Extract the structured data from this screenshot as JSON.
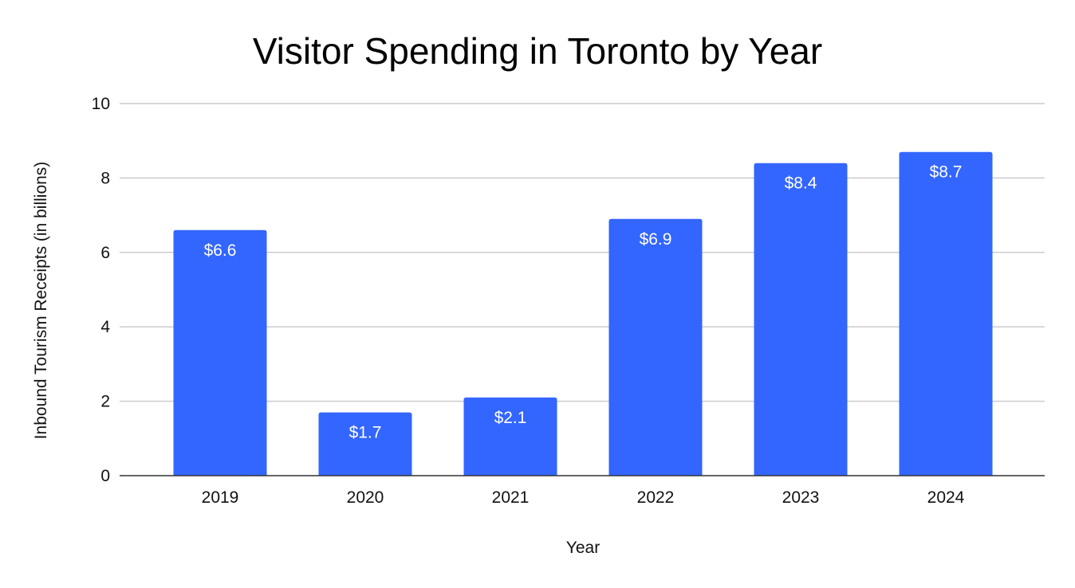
{
  "chart_data": {
    "type": "bar",
    "title": "Visitor Spending in Toronto by Year",
    "xlabel": "Year",
    "ylabel": "Inbound Tourism Receipts (in billions)",
    "categories": [
      "2019",
      "2020",
      "2021",
      "2022",
      "2023",
      "2024"
    ],
    "values": [
      6.6,
      1.7,
      2.1,
      6.9,
      8.4,
      8.7
    ],
    "data_labels": [
      "$6.6",
      "$1.7",
      "$2.1",
      "$6.9",
      "$8.4",
      "$8.7"
    ],
    "ylim": [
      0,
      10
    ],
    "yticks": [
      0,
      2,
      4,
      6,
      8,
      10
    ],
    "grid": true,
    "legend": "none",
    "bar_color": "#3366ff"
  }
}
